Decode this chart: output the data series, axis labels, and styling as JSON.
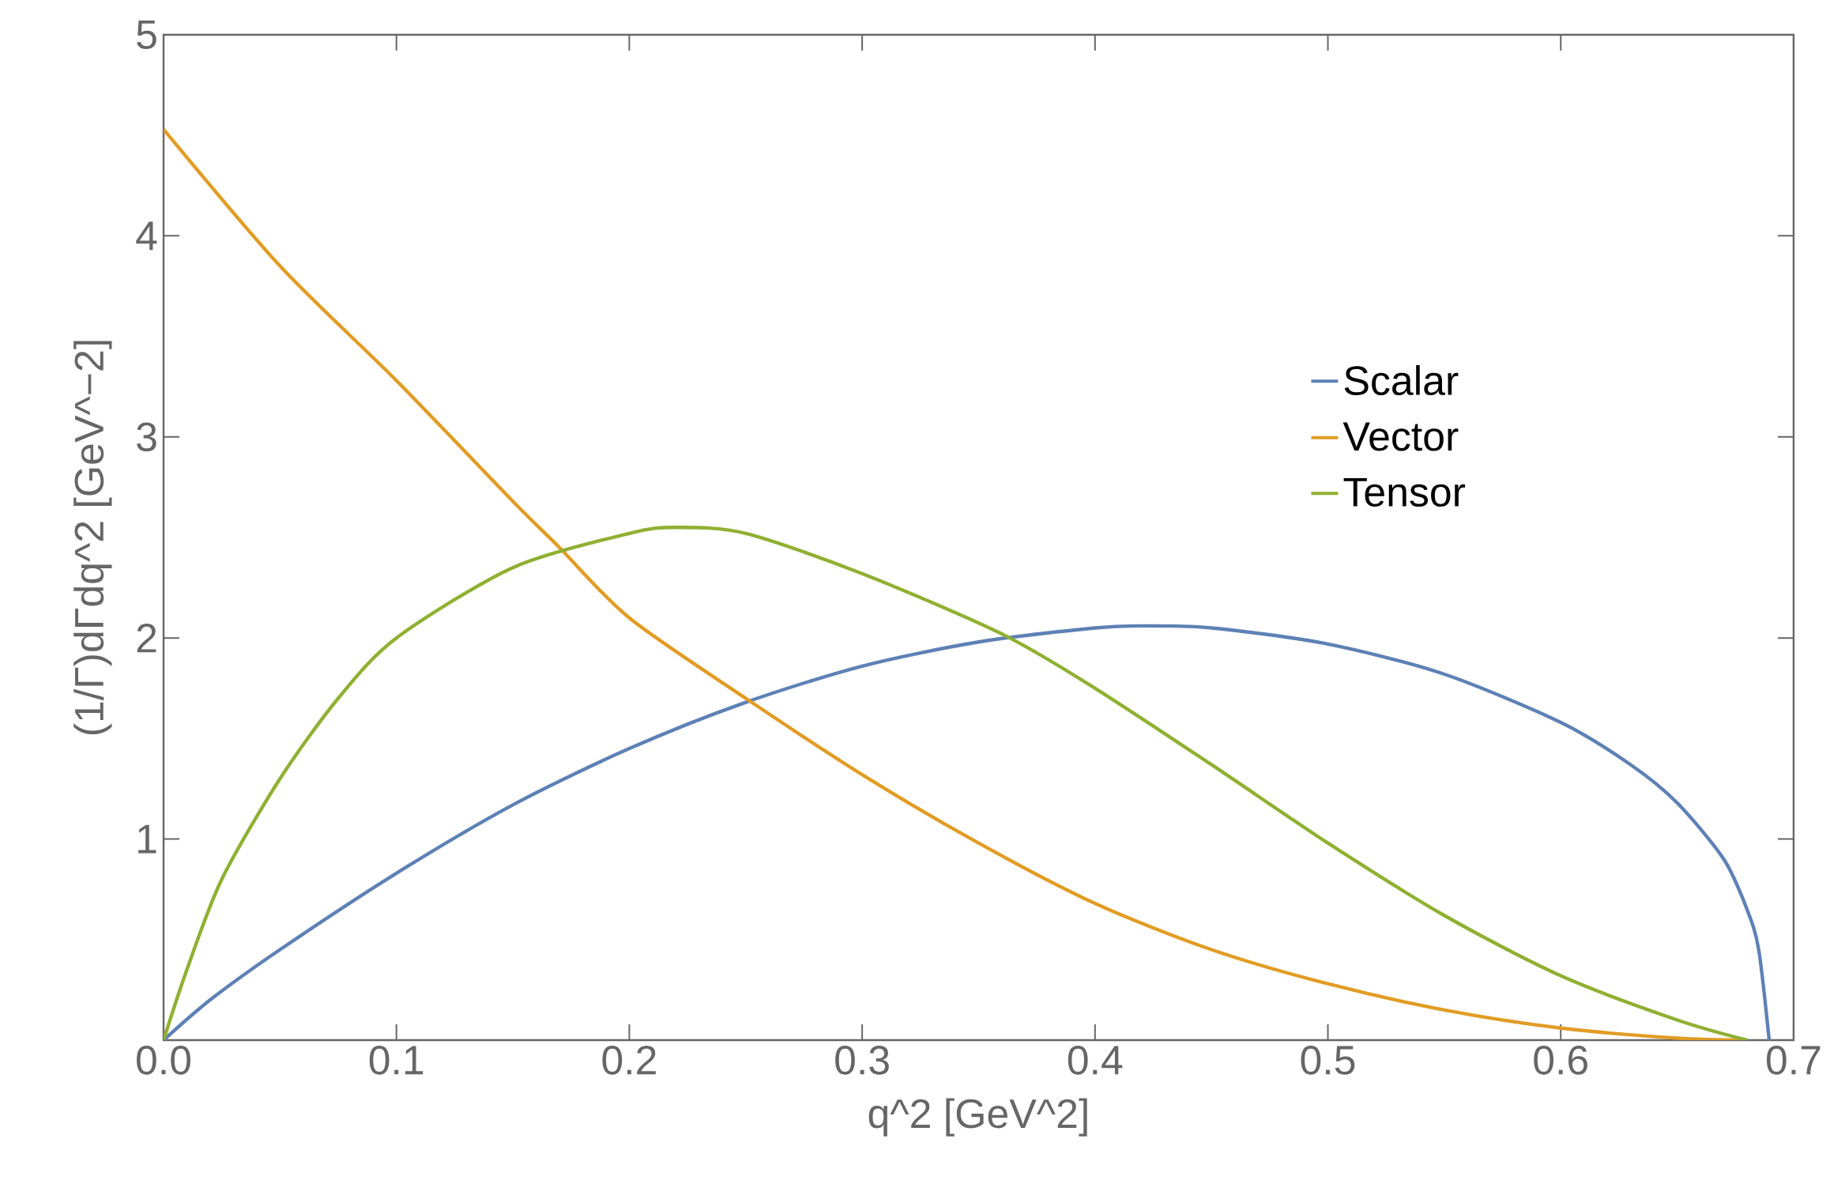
{
  "chart_data": {
    "type": "line",
    "xlabel": "q^2 [GeV^2]",
    "ylabel": "(1/Γ)dΓdq^2 [GeV^−2]",
    "xlim": [
      0,
      0.7
    ],
    "ylim": [
      0,
      5
    ],
    "xticks": [
      {
        "value": 0,
        "label": "0.0"
      },
      0.1,
      0.2,
      0.3,
      0.4,
      0.5,
      0.6,
      0.7
    ],
    "yticks": [
      1,
      2,
      3,
      4,
      5
    ],
    "legend": "right",
    "grid": false,
    "marker": "none",
    "line_style": "solid",
    "series": [
      {
        "name": "Scalar",
        "color": "#5e81b5",
        "x": [
          0,
          0.02,
          0.05,
          0.1,
          0.15,
          0.2,
          0.25,
          0.3,
          0.35,
          0.4,
          0.42,
          0.45,
          0.5,
          0.55,
          0.6,
          0.63,
          0.65,
          0.67,
          0.68,
          0.685,
          0.6895
        ],
        "values": [
          0,
          0.2,
          0.45,
          0.83,
          1.17,
          1.45,
          1.68,
          1.86,
          1.98,
          2.05,
          2.06,
          2.05,
          1.97,
          1.82,
          1.58,
          1.37,
          1.18,
          0.9,
          0.65,
          0.45,
          0
        ]
      },
      {
        "name": "Vector",
        "color": "#e19c24",
        "x": [
          0,
          0.05,
          0.1,
          0.15,
          0.17,
          0.2,
          0.25,
          0.3,
          0.35,
          0.4,
          0.45,
          0.5,
          0.55,
          0.6,
          0.65,
          0.68
        ],
        "values": [
          4.53,
          3.85,
          3.28,
          2.68,
          2.45,
          2.1,
          1.7,
          1.32,
          0.98,
          0.68,
          0.45,
          0.28,
          0.15,
          0.06,
          0.01,
          0
        ]
      },
      {
        "name": "Tensor",
        "color": "#8fb032",
        "x": [
          0,
          0.01,
          0.025,
          0.05,
          0.075,
          0.1,
          0.15,
          0.2,
          0.22,
          0.25,
          0.3,
          0.36,
          0.4,
          0.45,
          0.5,
          0.55,
          0.6,
          0.65,
          0.68
        ],
        "values": [
          0,
          0.35,
          0.8,
          1.3,
          1.7,
          2.0,
          2.35,
          2.52,
          2.55,
          2.52,
          2.32,
          2.02,
          1.75,
          1.37,
          0.98,
          0.62,
          0.32,
          0.1,
          0
        ]
      }
    ]
  }
}
